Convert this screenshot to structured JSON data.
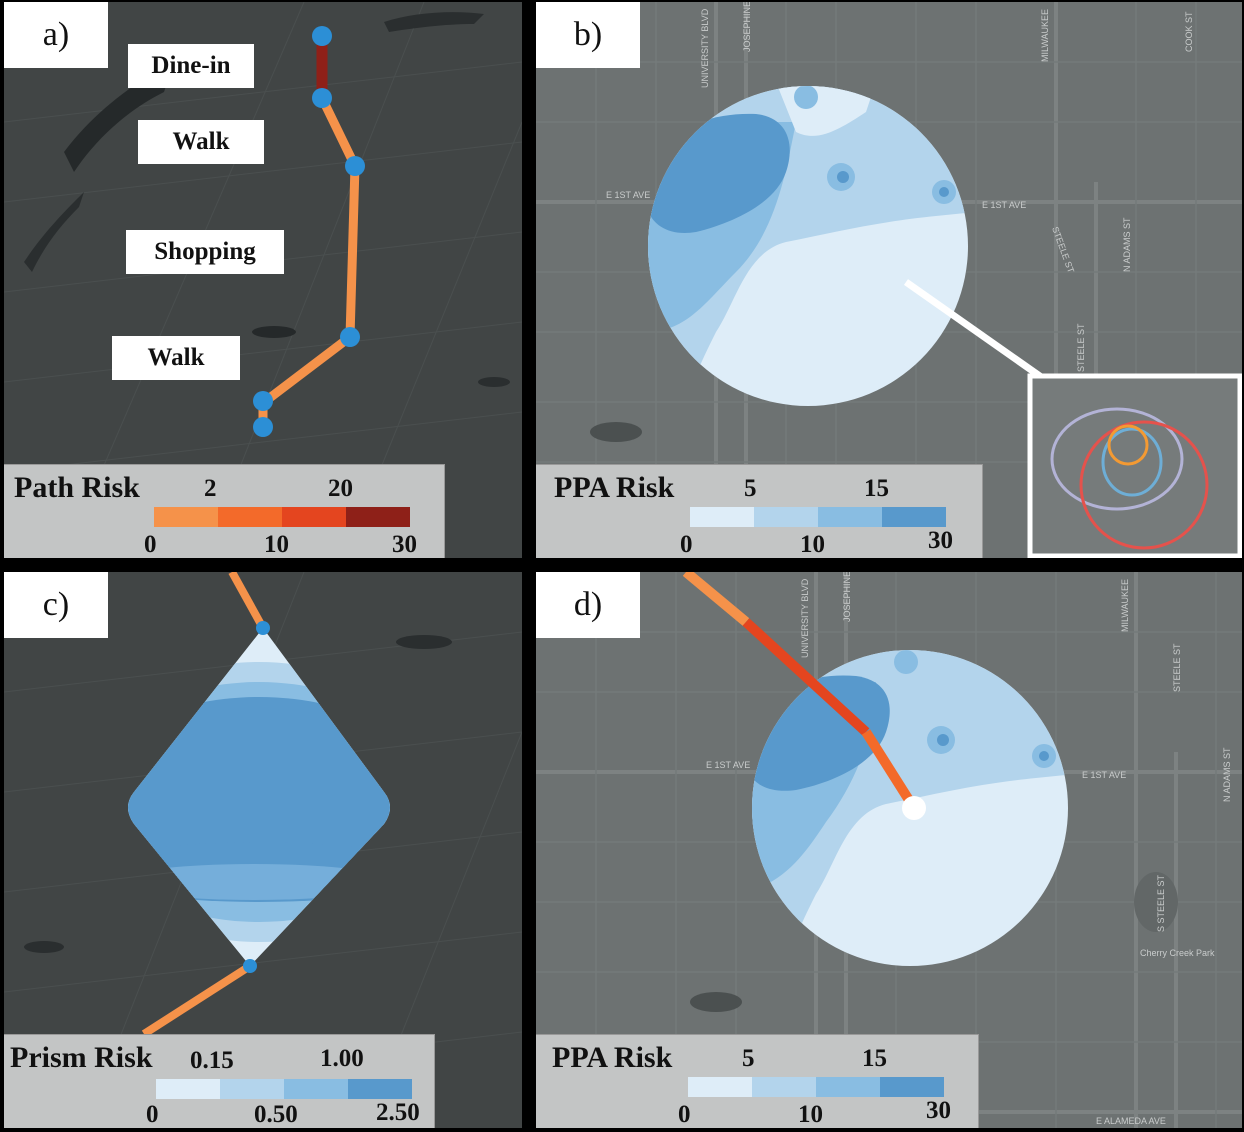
{
  "colors": {
    "path_risk": [
      "#f5924a",
      "#f36a2a",
      "#e4451f",
      "#8e2018"
    ],
    "ppa_risk": [
      "#deedf8",
      "#b3d4ec",
      "#89bde2",
      "#5899cc"
    ],
    "prism_risk": [
      "#deedf8",
      "#b3d4ec",
      "#89bde2",
      "#5899cc"
    ],
    "node": "#2c8fd6"
  },
  "panel_a": {
    "label": "a)",
    "activities": [
      "Dine-in",
      "Walk",
      "Shopping",
      "Walk"
    ],
    "legend": {
      "title": "Path Risk",
      "top_ticks": [
        "2",
        "20"
      ],
      "bottom_ticks": [
        "0",
        "10",
        "30"
      ]
    }
  },
  "panel_b": {
    "label": "b)",
    "street_labels": [
      "UNIVERSITY BLVD",
      "JOSEPHINE",
      "MILWAUKEE",
      "COOK ST",
      "E 1ST AVE",
      "E 1ST AVE",
      "STEELE ST",
      "N ADAMS ST",
      "STEELE ST"
    ],
    "legend": {
      "title": "PPA Risk",
      "top_ticks": [
        "5",
        "15"
      ],
      "bottom_ticks": [
        "0",
        "10",
        "30"
      ]
    }
  },
  "panel_c": {
    "label": "c)",
    "legend": {
      "title": "Prism Risk",
      "top_ticks": [
        "0.15",
        "1.00"
      ],
      "bottom_ticks": [
        "0",
        "0.50",
        "2.50"
      ]
    }
  },
  "panel_d": {
    "label": "d)",
    "street_labels": [
      "UNIVERSITY BLVD",
      "JOSEPHINE",
      "MILWAUKEE",
      "STEELE ST",
      "E 1ST AVE",
      "E 1ST AVE",
      "N ADAMS ST",
      "S STEELE ST",
      "Cherry Creek Park",
      "E ALAMEDA AVE"
    ],
    "legend": {
      "title": "PPA Risk",
      "top_ticks": [
        "5",
        "15"
      ],
      "bottom_ticks": [
        "0",
        "10",
        "30"
      ]
    }
  }
}
